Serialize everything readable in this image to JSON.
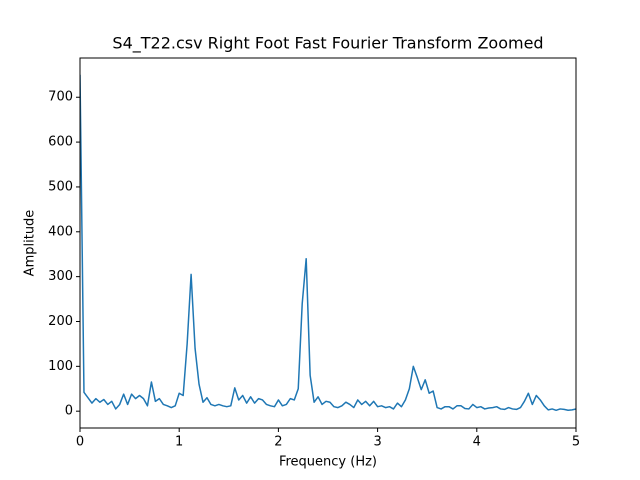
{
  "chart_data": {
    "type": "line",
    "title": "S4_T22.csv Right Foot Fast Fourier Transform Zoomed",
    "x_label": "Frequency (Hz)",
    "y_label": "Amplitude",
    "color": "#1f77b4",
    "x": [
      0,
      0.04,
      0.08,
      0.12,
      0.16,
      0.2,
      0.24,
      0.28,
      0.32,
      0.36,
      0.4,
      0.44,
      0.48,
      0.52,
      0.56,
      0.6,
      0.64,
      0.68,
      0.72,
      0.76,
      0.8,
      0.84,
      0.88,
      0.92,
      0.96,
      1.0,
      1.04,
      1.08,
      1.12,
      1.16,
      1.2,
      1.24,
      1.28,
      1.32,
      1.36,
      1.4,
      1.44,
      1.48,
      1.52,
      1.56,
      1.6,
      1.64,
      1.68,
      1.72,
      1.76,
      1.8,
      1.84,
      1.88,
      1.92,
      1.96,
      2.0,
      2.04,
      2.08,
      2.12,
      2.16,
      2.2,
      2.24,
      2.28,
      2.32,
      2.36,
      2.4,
      2.44,
      2.48,
      2.52,
      2.56,
      2.6,
      2.64,
      2.68,
      2.72,
      2.76,
      2.8,
      2.84,
      2.88,
      2.92,
      2.96,
      3.0,
      3.04,
      3.08,
      3.12,
      3.16,
      3.2,
      3.24,
      3.28,
      3.32,
      3.36,
      3.4,
      3.44,
      3.48,
      3.52,
      3.56,
      3.6,
      3.64,
      3.68,
      3.72,
      3.76,
      3.8,
      3.84,
      3.88,
      3.92,
      3.96,
      4.0,
      4.04,
      4.08,
      4.12,
      4.16,
      4.2,
      4.24,
      4.28,
      4.32,
      4.36,
      4.4,
      4.44,
      4.48,
      4.52,
      4.56,
      4.6,
      4.64,
      4.68,
      4.72,
      4.76,
      4.8,
      4.84,
      4.88,
      4.92,
      4.96,
      5.0
    ],
    "values": [
      750,
      42,
      30,
      18,
      28,
      20,
      26,
      15,
      22,
      5,
      15,
      38,
      15,
      38,
      28,
      35,
      28,
      12,
      65,
      22,
      28,
      15,
      12,
      8,
      12,
      40,
      35,
      150,
      305,
      140,
      60,
      20,
      30,
      15,
      12,
      15,
      12,
      10,
      12,
      52,
      25,
      35,
      18,
      32,
      18,
      28,
      25,
      15,
      12,
      10,
      25,
      12,
      15,
      28,
      25,
      50,
      240,
      340,
      80,
      20,
      32,
      15,
      22,
      20,
      10,
      8,
      12,
      20,
      15,
      8,
      25,
      15,
      22,
      12,
      22,
      10,
      12,
      8,
      10,
      5,
      18,
      10,
      25,
      50,
      100,
      75,
      48,
      70,
      40,
      45,
      8,
      5,
      10,
      10,
      5,
      12,
      12,
      6,
      5,
      15,
      8,
      10,
      5,
      7,
      8,
      10,
      5,
      4,
      8,
      5,
      4,
      8,
      22,
      40,
      15,
      35,
      25,
      12,
      3,
      5,
      2,
      5,
      4,
      2,
      3,
      5
    ],
    "xlim": [
      0,
      5
    ],
    "xticks": [
      0,
      1,
      2,
      3,
      4,
      5
    ],
    "ylim": [
      -37.5,
      787.5
    ],
    "yticks": [
      0,
      100,
      200,
      300,
      400,
      500,
      600,
      700
    ]
  }
}
